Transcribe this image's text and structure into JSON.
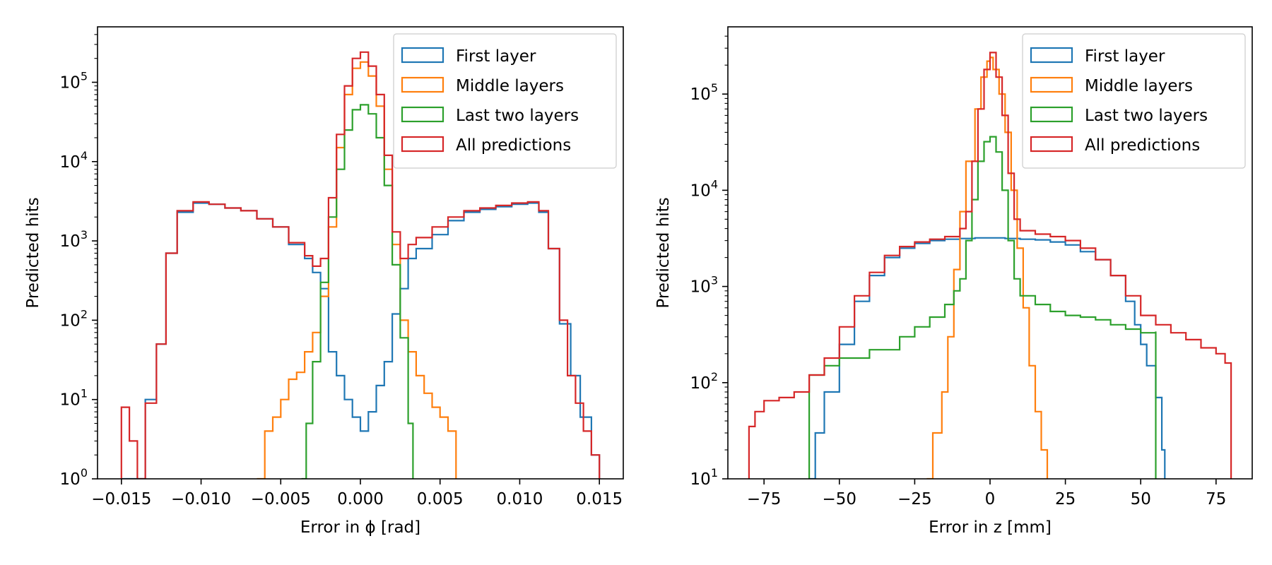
{
  "chart_data": [
    {
      "type": "histogram",
      "xlabel": "Error in ϕ [rad]",
      "ylabel": "Predicted hits",
      "xlim": [
        -0.0165,
        0.0165
      ],
      "ylim": [
        1,
        500000
      ],
      "yscale": "log",
      "grid": false,
      "legend_position": "top-right",
      "x_ticks": [
        -0.015,
        -0.01,
        -0.005,
        0.0,
        0.005,
        0.01,
        0.015
      ],
      "x_tick_labels": [
        "−0.015",
        "−0.010",
        "−0.005",
        "0.000",
        "0.005",
        "0.010",
        "0.015"
      ],
      "y_ticks": [
        1,
        10,
        100,
        1000,
        10000,
        100000
      ],
      "y_tick_labels": [
        {
          "base": "10",
          "exp": "0"
        },
        {
          "base": "10",
          "exp": "1"
        },
        {
          "base": "10",
          "exp": "2"
        },
        {
          "base": "10",
          "exp": "3"
        },
        {
          "base": "10",
          "exp": "4"
        },
        {
          "base": "10",
          "exp": "5"
        }
      ],
      "series": [
        {
          "name": "First layer",
          "color": "#1f77b4",
          "points": [
            [
              -0.015,
              1
            ],
            [
              -0.0142,
              1
            ],
            [
              -0.0135,
              10
            ],
            [
              -0.0128,
              50
            ],
            [
              -0.0122,
              700
            ],
            [
              -0.0115,
              2300
            ],
            [
              -0.0105,
              3000
            ],
            [
              -0.0095,
              2900
            ],
            [
              -0.0085,
              2600
            ],
            [
              -0.0075,
              2400
            ],
            [
              -0.0065,
              1900
            ],
            [
              -0.0055,
              1500
            ],
            [
              -0.0045,
              900
            ],
            [
              -0.0035,
              600
            ],
            [
              -0.003,
              400
            ],
            [
              -0.0025,
              250
            ],
            [
              -0.002,
              40
            ],
            [
              -0.0015,
              20
            ],
            [
              -0.001,
              10
            ],
            [
              -0.0005,
              6
            ],
            [
              0.0,
              4
            ],
            [
              0.0005,
              7
            ],
            [
              0.001,
              15
            ],
            [
              0.0015,
              30
            ],
            [
              0.002,
              120
            ],
            [
              0.0025,
              250
            ],
            [
              0.003,
              600
            ],
            [
              0.0035,
              800
            ],
            [
              0.0045,
              1200
            ],
            [
              0.0055,
              1800
            ],
            [
              0.0065,
              2300
            ],
            [
              0.0075,
              2500
            ],
            [
              0.0085,
              2700
            ],
            [
              0.0095,
              2900
            ],
            [
              0.0105,
              3000
            ],
            [
              0.0112,
              2300
            ],
            [
              0.0118,
              800
            ],
            [
              0.0125,
              90
            ],
            [
              0.0132,
              20
            ],
            [
              0.0138,
              6
            ],
            [
              0.0145,
              2
            ],
            [
              0.015,
              1
            ]
          ]
        },
        {
          "name": "Middle layers",
          "color": "#ff7f0e",
          "points": [
            [
              -0.0065,
              1
            ],
            [
              -0.006,
              4
            ],
            [
              -0.0055,
              6
            ],
            [
              -0.005,
              10
            ],
            [
              -0.0045,
              18
            ],
            [
              -0.004,
              22
            ],
            [
              -0.0035,
              40
            ],
            [
              -0.003,
              70
            ],
            [
              -0.0025,
              200
            ],
            [
              -0.002,
              1500
            ],
            [
              -0.0015,
              15000
            ],
            [
              -0.001,
              70000
            ],
            [
              -0.0005,
              150000
            ],
            [
              0.0,
              180000
            ],
            [
              0.0005,
              120000
            ],
            [
              0.001,
              50000
            ],
            [
              0.0015,
              8000
            ],
            [
              0.002,
              900
            ],
            [
              0.0025,
              100
            ],
            [
              0.003,
              40
            ],
            [
              0.0035,
              20
            ],
            [
              0.004,
              12
            ],
            [
              0.0045,
              8
            ],
            [
              0.005,
              6
            ],
            [
              0.0055,
              4
            ],
            [
              0.006,
              1
            ]
          ]
        },
        {
          "name": "Last two layers",
          "color": "#2ca02c",
          "points": [
            [
              -0.0037,
              1
            ],
            [
              -0.0034,
              5
            ],
            [
              -0.003,
              30
            ],
            [
              -0.0025,
              300
            ],
            [
              -0.002,
              2000
            ],
            [
              -0.0015,
              8000
            ],
            [
              -0.001,
              25000
            ],
            [
              -0.0005,
              45000
            ],
            [
              0.0,
              52000
            ],
            [
              0.0005,
              40000
            ],
            [
              0.001,
              20000
            ],
            [
              0.0015,
              5000
            ],
            [
              0.002,
              500
            ],
            [
              0.0025,
              60
            ],
            [
              0.003,
              5
            ],
            [
              0.0033,
              1
            ]
          ]
        },
        {
          "name": "All predictions",
          "color": "#d62728",
          "points": [
            [
              -0.015,
              8
            ],
            [
              -0.0145,
              3
            ],
            [
              -0.014,
              1
            ],
            [
              -0.0135,
              9
            ],
            [
              -0.0128,
              50
            ],
            [
              -0.0122,
              700
            ],
            [
              -0.0115,
              2400
            ],
            [
              -0.0105,
              3100
            ],
            [
              -0.0095,
              2900
            ],
            [
              -0.0085,
              2600
            ],
            [
              -0.0075,
              2400
            ],
            [
              -0.0065,
              1900
            ],
            [
              -0.0055,
              1500
            ],
            [
              -0.0045,
              950
            ],
            [
              -0.0035,
              650
            ],
            [
              -0.003,
              480
            ],
            [
              -0.0025,
              600
            ],
            [
              -0.002,
              3500
            ],
            [
              -0.0015,
              22000
            ],
            [
              -0.001,
              90000
            ],
            [
              -0.0005,
              200000
            ],
            [
              0.0,
              240000
            ],
            [
              0.0005,
              160000
            ],
            [
              0.001,
              70000
            ],
            [
              0.0015,
              12000
            ],
            [
              0.002,
              1300
            ],
            [
              0.0025,
              600
            ],
            [
              0.003,
              900
            ],
            [
              0.0035,
              1100
            ],
            [
              0.0045,
              1500
            ],
            [
              0.0055,
              2000
            ],
            [
              0.0065,
              2400
            ],
            [
              0.0075,
              2600
            ],
            [
              0.0085,
              2800
            ],
            [
              0.0095,
              3000
            ],
            [
              0.0105,
              3100
            ],
            [
              0.0112,
              2400
            ],
            [
              0.0118,
              800
            ],
            [
              0.0125,
              100
            ],
            [
              0.013,
              20
            ],
            [
              0.0135,
              9
            ],
            [
              0.014,
              4
            ],
            [
              0.0145,
              2
            ],
            [
              0.015,
              1
            ]
          ]
        }
      ]
    },
    {
      "type": "histogram",
      "xlabel": "Error in z [mm]",
      "ylabel": "Predicted hits",
      "xlim": [
        -87,
        87
      ],
      "ylim": [
        10,
        500000
      ],
      "yscale": "log",
      "grid": false,
      "legend_position": "top-right",
      "x_ticks": [
        -75,
        -50,
        -25,
        0,
        25,
        50,
        75
      ],
      "x_tick_labels": [
        "−75",
        "−50",
        "−25",
        "0",
        "25",
        "50",
        "75"
      ],
      "y_ticks": [
        10,
        100,
        1000,
        10000,
        100000
      ],
      "y_tick_labels": [
        {
          "base": "10",
          "exp": "1"
        },
        {
          "base": "10",
          "exp": "2"
        },
        {
          "base": "10",
          "exp": "3"
        },
        {
          "base": "10",
          "exp": "4"
        },
        {
          "base": "10",
          "exp": "5"
        }
      ],
      "series": [
        {
          "name": "First layer",
          "color": "#1f77b4",
          "points": [
            [
              -60,
              10
            ],
            [
              -58,
              30
            ],
            [
              -55,
              80
            ],
            [
              -50,
              250
            ],
            [
              -45,
              700
            ],
            [
              -40,
              1300
            ],
            [
              -35,
              2000
            ],
            [
              -30,
              2500
            ],
            [
              -25,
              2800
            ],
            [
              -20,
              3000
            ],
            [
              -15,
              3100
            ],
            [
              -10,
              3150
            ],
            [
              -5,
              3200
            ],
            [
              0,
              3200
            ],
            [
              5,
              3150
            ],
            [
              10,
              3100
            ],
            [
              15,
              3050
            ],
            [
              20,
              2900
            ],
            [
              25,
              2700
            ],
            [
              30,
              2300
            ],
            [
              35,
              1900
            ],
            [
              40,
              1300
            ],
            [
              45,
              700
            ],
            [
              48,
              400
            ],
            [
              50,
              250
            ],
            [
              52,
              150
            ],
            [
              55,
              70
            ],
            [
              57,
              20
            ],
            [
              58,
              10
            ]
          ]
        },
        {
          "name": "Middle layers",
          "color": "#ff7f0e",
          "points": [
            [
              -21,
              10
            ],
            [
              -19,
              30
            ],
            [
              -16,
              80
            ],
            [
              -14,
              300
            ],
            [
              -12,
              1500
            ],
            [
              -10,
              6000
            ],
            [
              -8,
              20000
            ],
            [
              -5,
              70000
            ],
            [
              -3,
              150000
            ],
            [
              -1,
              220000
            ],
            [
              0,
              240000
            ],
            [
              1,
              180000
            ],
            [
              3,
              100000
            ],
            [
              5,
              40000
            ],
            [
              7,
              10000
            ],
            [
              9,
              2500
            ],
            [
              11,
              600
            ],
            [
              13,
              150
            ],
            [
              15,
              50
            ],
            [
              17,
              20
            ],
            [
              19,
              10
            ]
          ]
        },
        {
          "name": "Last two layers",
          "color": "#2ca02c",
          "points": [
            [
              -60,
              120
            ],
            [
              -55,
              150
            ],
            [
              -50,
              180
            ],
            [
              -40,
              220
            ],
            [
              -30,
              300
            ],
            [
              -25,
              380
            ],
            [
              -20,
              480
            ],
            [
              -15,
              650
            ],
            [
              -12,
              900
            ],
            [
              -10,
              1200
            ],
            [
              -8,
              3000
            ],
            [
              -6,
              8000
            ],
            [
              -4,
              20000
            ],
            [
              -2,
              32000
            ],
            [
              0,
              36000
            ],
            [
              2,
              25000
            ],
            [
              4,
              10000
            ],
            [
              6,
              3000
            ],
            [
              8,
              1200
            ],
            [
              10,
              800
            ],
            [
              15,
              650
            ],
            [
              20,
              550
            ],
            [
              25,
              500
            ],
            [
              30,
              480
            ],
            [
              35,
              450
            ],
            [
              40,
              400
            ],
            [
              45,
              360
            ],
            [
              50,
              330
            ],
            [
              55,
              340
            ]
          ]
        },
        {
          "name": "All predictions",
          "color": "#d62728",
          "points": [
            [
              -80,
              35
            ],
            [
              -78,
              50
            ],
            [
              -75,
              65
            ],
            [
              -70,
              70
            ],
            [
              -65,
              80
            ],
            [
              -60,
              120
            ],
            [
              -55,
              180
            ],
            [
              -50,
              380
            ],
            [
              -45,
              800
            ],
            [
              -40,
              1400
            ],
            [
              -35,
              2100
            ],
            [
              -30,
              2600
            ],
            [
              -25,
              2900
            ],
            [
              -20,
              3100
            ],
            [
              -15,
              3300
            ],
            [
              -10,
              4000
            ],
            [
              -8,
              6000
            ],
            [
              -6,
              20000
            ],
            [
              -4,
              70000
            ],
            [
              -2,
              180000
            ],
            [
              0,
              270000
            ],
            [
              2,
              150000
            ],
            [
              4,
              60000
            ],
            [
              6,
              15000
            ],
            [
              8,
              5000
            ],
            [
              10,
              3800
            ],
            [
              15,
              3500
            ],
            [
              20,
              3300
            ],
            [
              25,
              3000
            ],
            [
              30,
              2500
            ],
            [
              35,
              1900
            ],
            [
              40,
              1300
            ],
            [
              45,
              800
            ],
            [
              50,
              500
            ],
            [
              55,
              400
            ],
            [
              60,
              330
            ],
            [
              65,
              280
            ],
            [
              70,
              230
            ],
            [
              75,
              200
            ],
            [
              78,
              160
            ],
            [
              80,
              150
            ]
          ]
        }
      ]
    }
  ]
}
